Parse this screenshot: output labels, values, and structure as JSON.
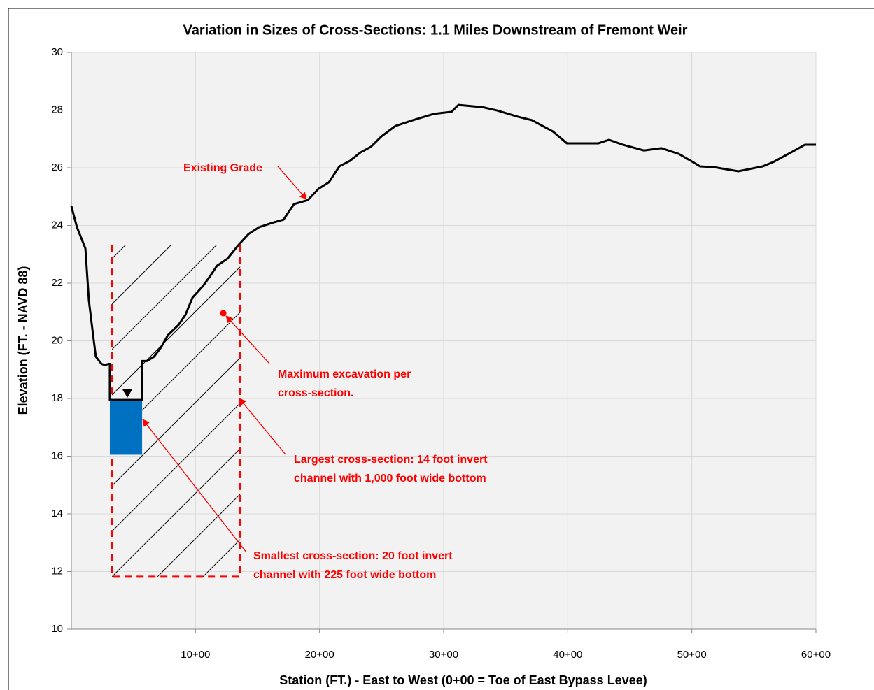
{
  "chart_data": {
    "type": "line",
    "title": "Variation in Sizes of Cross-Sections:  1.1 Miles Downstream of Fremont Weir",
    "xlabel": "Station (FT.) - East to West (0+00 = Toe of East Bypass Levee)",
    "ylabel": "Elevation (FT. - NAVD 88)",
    "xlim": [
      0,
      6000
    ],
    "ylim": [
      10,
      30
    ],
    "xticks": [
      {
        "value": 1000,
        "label": "10+00"
      },
      {
        "value": 2000,
        "label": "20+00"
      },
      {
        "value": 3000,
        "label": "30+00"
      },
      {
        "value": 4000,
        "label": "40+00"
      },
      {
        "value": 5000,
        "label": "50+00"
      },
      {
        "value": 6000,
        "label": "60+00"
      }
    ],
    "yticks": [
      10,
      12,
      14,
      16,
      18,
      20,
      22,
      24,
      26,
      28,
      30
    ],
    "grid": true,
    "x": [
      0,
      45,
      90,
      113,
      141,
      175,
      197,
      243,
      271,
      299,
      310,
      310,
      570,
      570,
      609,
      666,
      722,
      778,
      863,
      919,
      976,
      1060,
      1117,
      1173,
      1258,
      1342,
      1427,
      1512,
      1624,
      1709,
      1794,
      1906,
      1991,
      2076,
      2160,
      2245,
      2329,
      2414,
      2499,
      2611,
      2752,
      2922,
      3063,
      3119,
      3316,
      3429,
      3598,
      3711,
      3880,
      3993,
      4247,
      4332,
      4444,
      4614,
      4755,
      4896,
      5008,
      5065,
      5178,
      5375,
      5572,
      5657,
      5798,
      5911,
      6000
    ],
    "series": [
      {
        "color": "#000000",
        "values": [
          24.67,
          23.94,
          23.45,
          23.2,
          21.4,
          20.2,
          19.45,
          19.2,
          19.16,
          19.2,
          19.2,
          17.95,
          17.95,
          19.3,
          19.3,
          19.45,
          19.77,
          20.2,
          20.55,
          20.9,
          21.5,
          21.9,
          22.24,
          22.6,
          22.85,
          23.3,
          23.7,
          23.94,
          24.1,
          24.2,
          24.74,
          24.88,
          25.27,
          25.5,
          26.05,
          26.24,
          26.53,
          26.73,
          27.09,
          27.45,
          27.65,
          27.87,
          27.94,
          28.18,
          28.1,
          27.99,
          27.77,
          27.65,
          27.26,
          26.85,
          26.85,
          26.97,
          26.8,
          26.6,
          26.68,
          26.48,
          26.2,
          26.05,
          26.02,
          25.88,
          26.05,
          26.2,
          26.53,
          26.8,
          26.8
        ]
      }
    ],
    "channel": {
      "x": [
        310,
        570
      ],
      "y": [
        16.05,
        17.95
      ],
      "color": "#0070c0"
    },
    "water_surface": {
      "x": 451,
      "y": 18.17
    },
    "excavation": {
      "x": [
        327,
        1360
      ],
      "y": [
        11.82,
        23.33
      ],
      "color": "#ff0000"
    },
    "max_point": {
      "x": 1224,
      "y": 20.96
    },
    "annotations": [
      {
        "lines": [
          "Existing Grade"
        ]
      },
      {
        "lines": [
          "Maximum excavation per",
          "cross-section."
        ]
      },
      {
        "lines": [
          "Largest cross-section:  14 foot invert",
          "channel with 1,000 foot wide bottom"
        ]
      },
      {
        "lines": [
          "Smallest cross-section:  20 foot invert",
          "channel with 225 foot wide bottom"
        ]
      }
    ]
  }
}
